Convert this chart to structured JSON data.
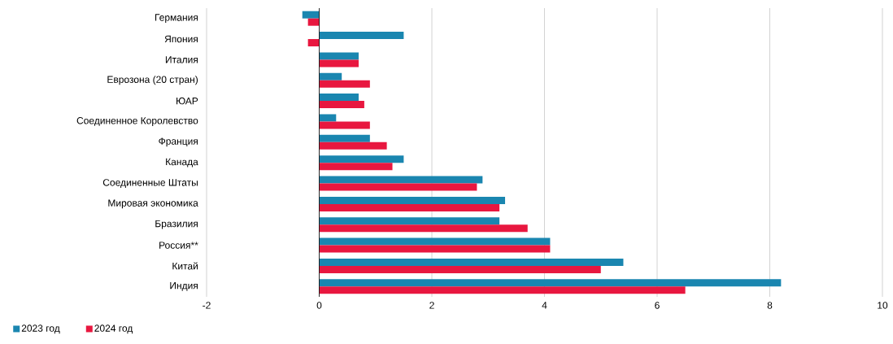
{
  "chart_data": {
    "type": "bar",
    "orientation": "horizontal",
    "categories": [
      "Германия",
      "Япония",
      "Италия",
      "Еврозона (20 стран)",
      "ЮАР",
      "Соединенное Королевство",
      "Франция",
      "Канада",
      "Соединенные Штаты",
      "Мировая экономика",
      "Бразилия",
      "Россия**",
      "Китай",
      "Индия"
    ],
    "series": [
      {
        "name": "2023 год",
        "color": "#1a86b0",
        "values": [
          -0.3,
          1.5,
          0.7,
          0.4,
          0.7,
          0.3,
          0.9,
          1.5,
          2.9,
          3.3,
          3.2,
          4.1,
          5.4,
          8.2
        ]
      },
      {
        "name": "2024 год",
        "color": "#e8173f",
        "values": [
          -0.2,
          -0.2,
          0.7,
          0.9,
          0.8,
          0.9,
          1.2,
          1.3,
          2.8,
          3.2,
          3.7,
          4.1,
          5.0,
          6.5
        ]
      }
    ],
    "xlim": [
      -2,
      10
    ],
    "xticks": [
      -2,
      0,
      2,
      4,
      6,
      8,
      10
    ],
    "grid": "x",
    "legend": "bottom left"
  }
}
